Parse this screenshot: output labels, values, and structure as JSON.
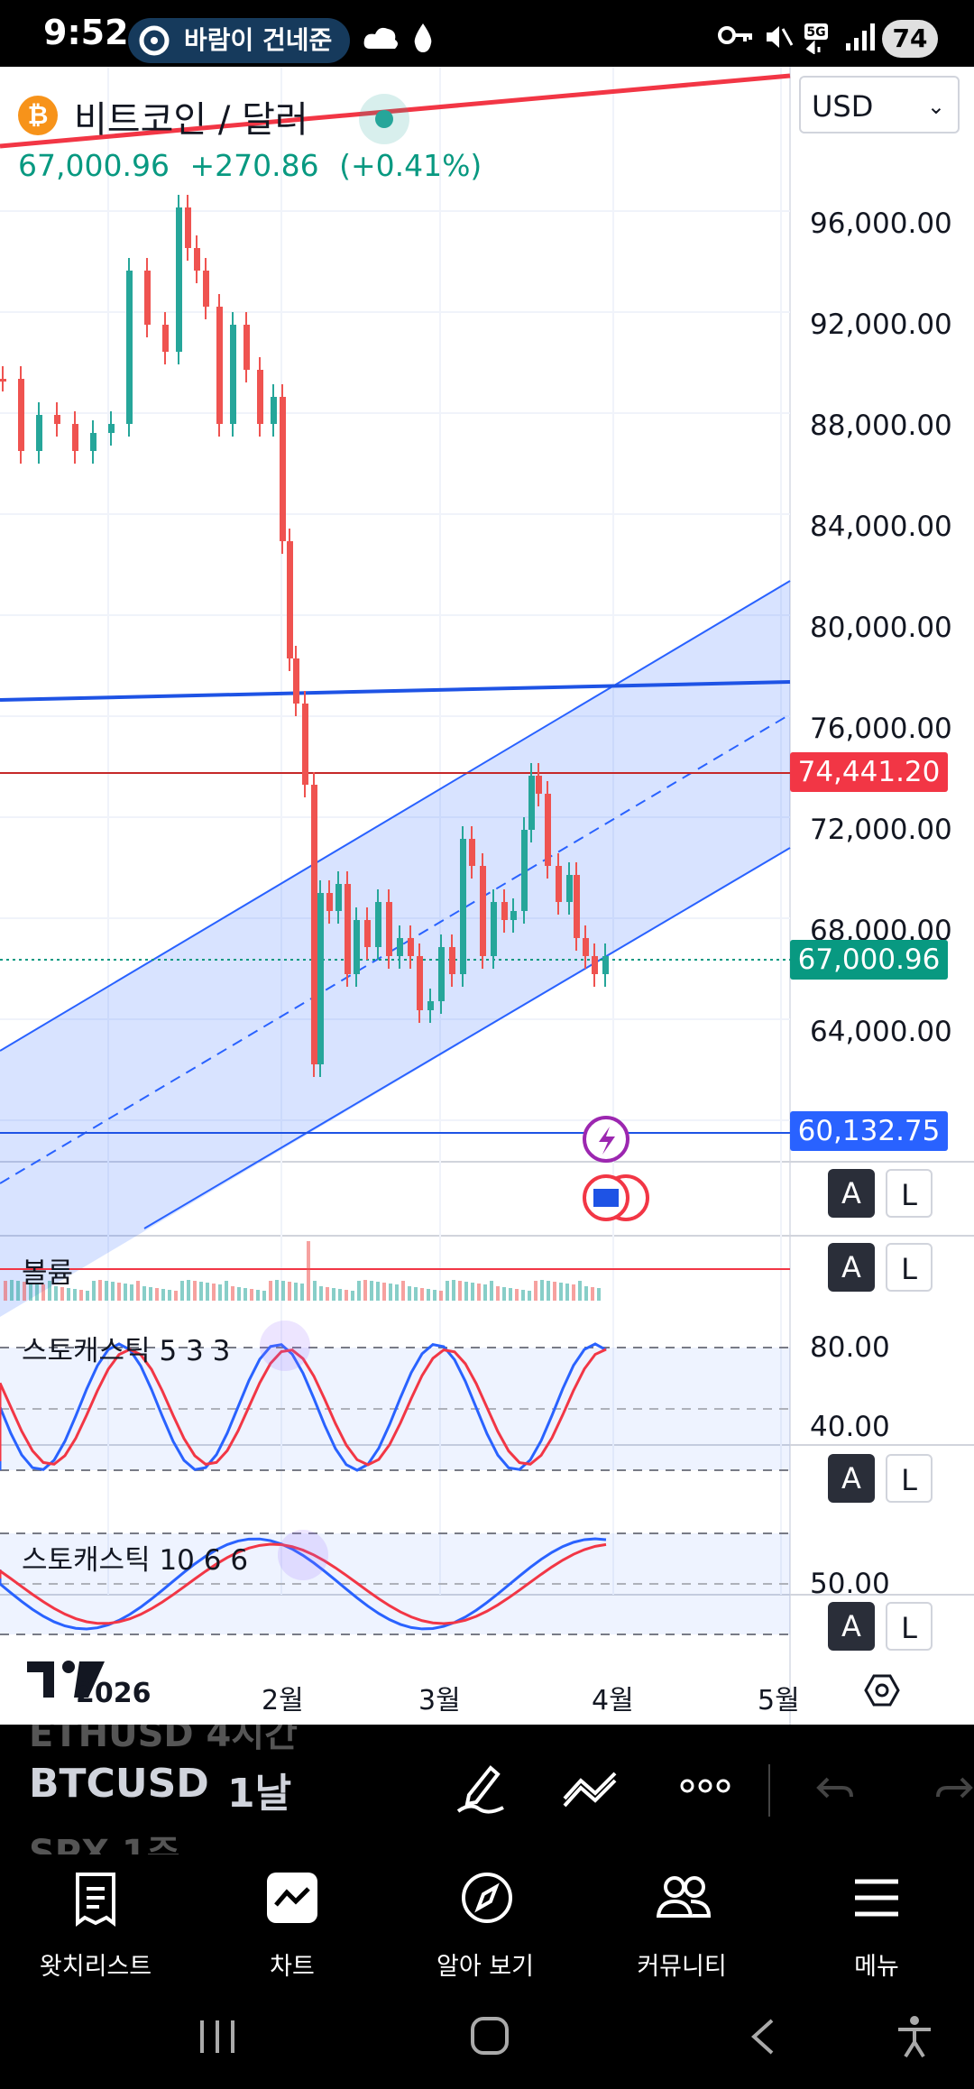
{
  "status_bar": {
    "time": "9:52",
    "radio": "바람이 건네준",
    "battery": "74",
    "network": "5G"
  },
  "chart": {
    "symbol_title": "비트코인 / 달러",
    "last_price": "67,000.96",
    "change": "+270.86",
    "change_pct": "(+0.41%)",
    "currency": "USD",
    "price_axis": [
      "96,000.00",
      "92,000.00",
      "88,000.00",
      "84,000.00",
      "80,000.00",
      "76,000.00",
      "72,000.00",
      "68,000.00",
      "64,000.00"
    ],
    "tags": {
      "resistance": "74,441.20",
      "current": "67,000.96",
      "support": "60,132.75"
    },
    "volume_label": "볼륨",
    "stoch1_label": "스토캐스틱 5 3 3",
    "stoch1_axis": [
      "80.00",
      "40.00"
    ],
    "stoch2_label": "스토캐스틱 10 6 6",
    "stoch2_axis": [
      "50.00"
    ],
    "scale_a": "A",
    "scale_l": "L",
    "time_axis": [
      "2026",
      "2월",
      "3월",
      "4월",
      "5월"
    ],
    "colors": {
      "up": "#26a69a",
      "down": "#ef5350",
      "channel": "#2962ff",
      "accent": "#f23645"
    }
  },
  "toolbar": {
    "ghost_prev": "ETHUSD  4시간",
    "symbol": "BTCUSD",
    "interval": "1날",
    "ghost_next": "SPX     1주"
  },
  "bottom_nav": [
    {
      "label": "왓치리스트",
      "icon": "watchlist-icon"
    },
    {
      "label": "차트",
      "icon": "chart-icon"
    },
    {
      "label": "알아 보기",
      "icon": "compass-icon"
    },
    {
      "label": "커뮤니티",
      "icon": "community-icon"
    },
    {
      "label": "메뉴",
      "icon": "menu-icon"
    }
  ]
}
